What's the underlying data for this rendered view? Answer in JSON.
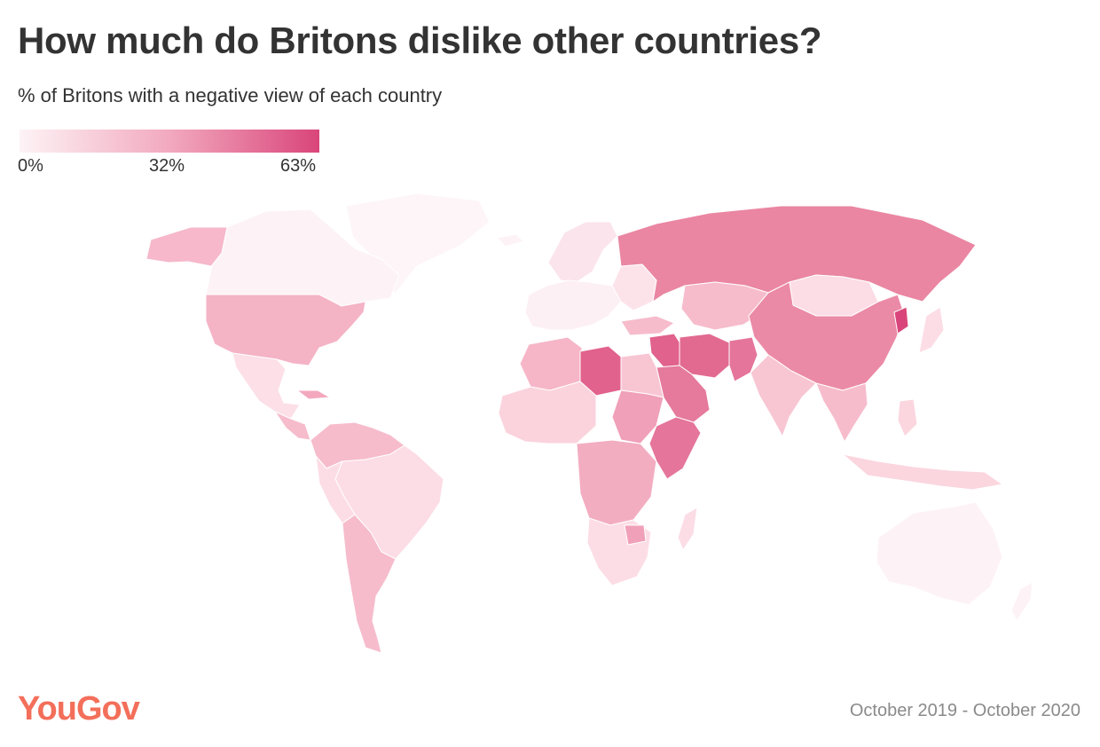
{
  "title": "How much do Britons dislike other countries?",
  "subtitle": "% of Britons with a negative view of each country",
  "legend": {
    "min_label": "0%",
    "mid_label": "32%",
    "max_label": "63%",
    "min_value": 0,
    "max_value": 63,
    "color_low": "#fdf3f6",
    "color_high": "#d9457a"
  },
  "brand": "YouGov",
  "period": "October 2019 - October 2020",
  "colors": {
    "title": "#333333",
    "brand": "#f36f5a",
    "period": "#8a8a8a",
    "border": "#ffffff"
  },
  "map_data": [
    {
      "country": "Russia",
      "value": 45
    },
    {
      "country": "China",
      "value": 44
    },
    {
      "country": "North Korea",
      "value": 63
    },
    {
      "country": "Iran",
      "value": 56
    },
    {
      "country": "Syria",
      "value": 58
    },
    {
      "country": "Iraq",
      "value": 54
    },
    {
      "country": "Afghanistan",
      "value": 52
    },
    {
      "country": "Saudi Arabia",
      "value": 50
    },
    {
      "country": "Libya",
      "value": 50
    },
    {
      "country": "Somalia",
      "value": 48
    },
    {
      "country": "Pakistan",
      "value": 44
    },
    {
      "country": "United States",
      "value": 32
    },
    {
      "country": "Canada",
      "value": 3
    },
    {
      "country": "Australia",
      "value": 3
    },
    {
      "country": "India",
      "value": 26
    },
    {
      "country": "Brazil",
      "value": 15
    },
    {
      "country": "Argentina",
      "value": 25
    },
    {
      "country": "Mexico",
      "value": 14
    },
    {
      "country": "Mongolia",
      "value": 14
    },
    {
      "country": "Kazakhstan",
      "value": 26
    },
    {
      "country": "Sudan",
      "value": 38
    },
    {
      "country": "South Africa",
      "value": 14
    },
    {
      "country": "Egypt",
      "value": 28
    },
    {
      "country": "Algeria",
      "value": 30
    },
    {
      "country": "Nigeria",
      "value": 34
    },
    {
      "country": "Zimbabwe",
      "value": 40
    }
  ]
}
